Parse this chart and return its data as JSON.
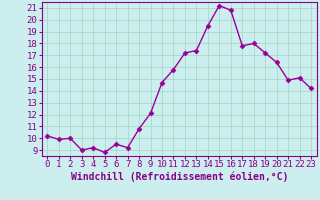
{
  "x": [
    0,
    1,
    2,
    3,
    4,
    5,
    6,
    7,
    8,
    9,
    10,
    11,
    12,
    13,
    14,
    15,
    16,
    17,
    18,
    19,
    20,
    21,
    22,
    23
  ],
  "y": [
    10.2,
    9.9,
    10.0,
    9.0,
    9.2,
    8.8,
    9.5,
    9.2,
    10.8,
    12.1,
    14.7,
    15.8,
    17.2,
    17.4,
    19.5,
    21.2,
    20.8,
    17.8,
    18.0,
    17.2,
    16.4,
    14.9,
    15.1,
    14.2
  ],
  "line_color": "#990099",
  "marker": "D",
  "markersize": 2.5,
  "linewidth": 1.0,
  "bg_color": "#cceeee",
  "grid_color": "#aaddcc",
  "xlabel": "Windchill (Refroidissement éolien,°C)",
  "xlim": [
    -0.5,
    23.5
  ],
  "ylim": [
    8.5,
    21.5
  ],
  "xtick_labels": [
    "0",
    "1",
    "2",
    "3",
    "4",
    "5",
    "6",
    "7",
    "8",
    "9",
    "10",
    "11",
    "12",
    "13",
    "14",
    "15",
    "16",
    "17",
    "18",
    "19",
    "20",
    "21",
    "22",
    "23"
  ],
  "ytick_values": [
    9,
    10,
    11,
    12,
    13,
    14,
    15,
    16,
    17,
    18,
    19,
    20,
    21
  ],
  "xlabel_fontsize": 7.0,
  "tick_fontsize": 6.5,
  "label_color": "#880088"
}
